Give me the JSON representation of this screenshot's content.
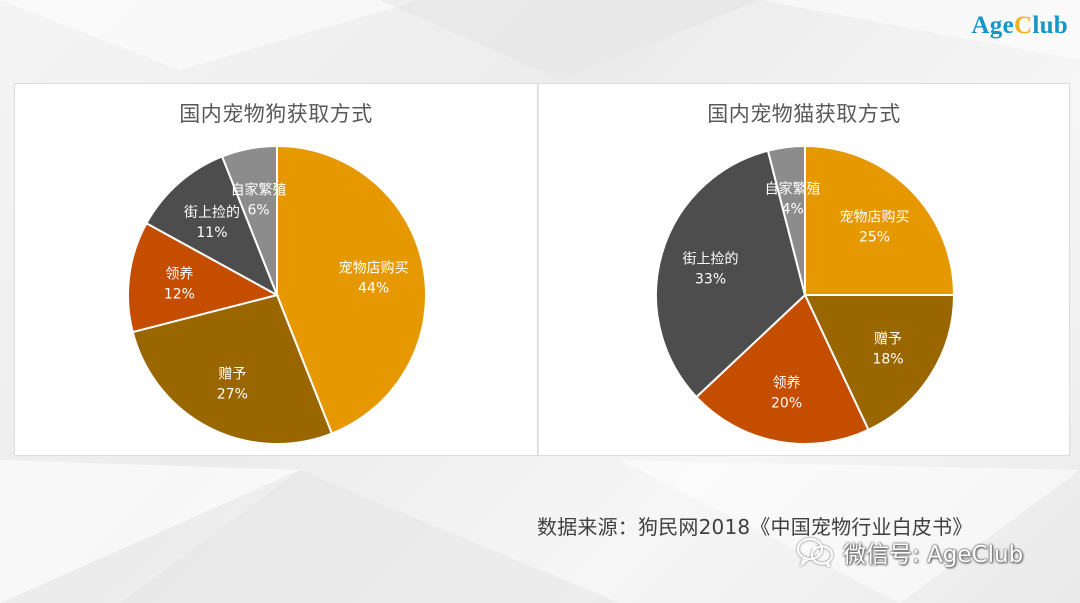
{
  "logo": {
    "part1": "Age",
    "part2": "C",
    "part3": "lub"
  },
  "colors": {
    "pet_store": "#e69800",
    "gift": "#996600",
    "adopt": "#c44d00",
    "street": "#4d4d4d",
    "home_breed": "#8c8c8c"
  },
  "chart_data": [
    {
      "type": "pie",
      "title": "国内宠物狗获取方式",
      "slices": [
        {
          "label": "宠物店购买",
          "value": 44,
          "display": "44%",
          "color": "#e69800"
        },
        {
          "label": "赠予",
          "value": 27,
          "display": "27%",
          "color": "#996600"
        },
        {
          "label": "领养",
          "value": 12,
          "display": "12%",
          "color": "#c44d00"
        },
        {
          "label": "街上捡的",
          "value": 11,
          "display": "11%",
          "color": "#4d4d4d"
        },
        {
          "label": "自家繁殖",
          "value": 6,
          "display": "6%",
          "color": "#8c8c8c"
        }
      ]
    },
    {
      "type": "pie",
      "title": "国内宠物猫获取方式",
      "slices": [
        {
          "label": "宠物店购买",
          "value": 25,
          "display": "25%",
          "color": "#e69800"
        },
        {
          "label": "赠予",
          "value": 18,
          "display": "18%",
          "color": "#996600"
        },
        {
          "label": "领养",
          "value": 20,
          "display": "20%",
          "color": "#c44d00"
        },
        {
          "label": "街上捡的",
          "value": 33,
          "display": "33%",
          "color": "#4d4d4d"
        },
        {
          "label": "自家繁殖",
          "value": 4,
          "display": "4%",
          "color": "#8c8c8c"
        }
      ]
    }
  ],
  "source_text": "数据来源：狗民网2018《中国宠物行业白皮书》",
  "watermark": {
    "icon": "wechat-icon",
    "text": "微信号: AgeClub"
  }
}
